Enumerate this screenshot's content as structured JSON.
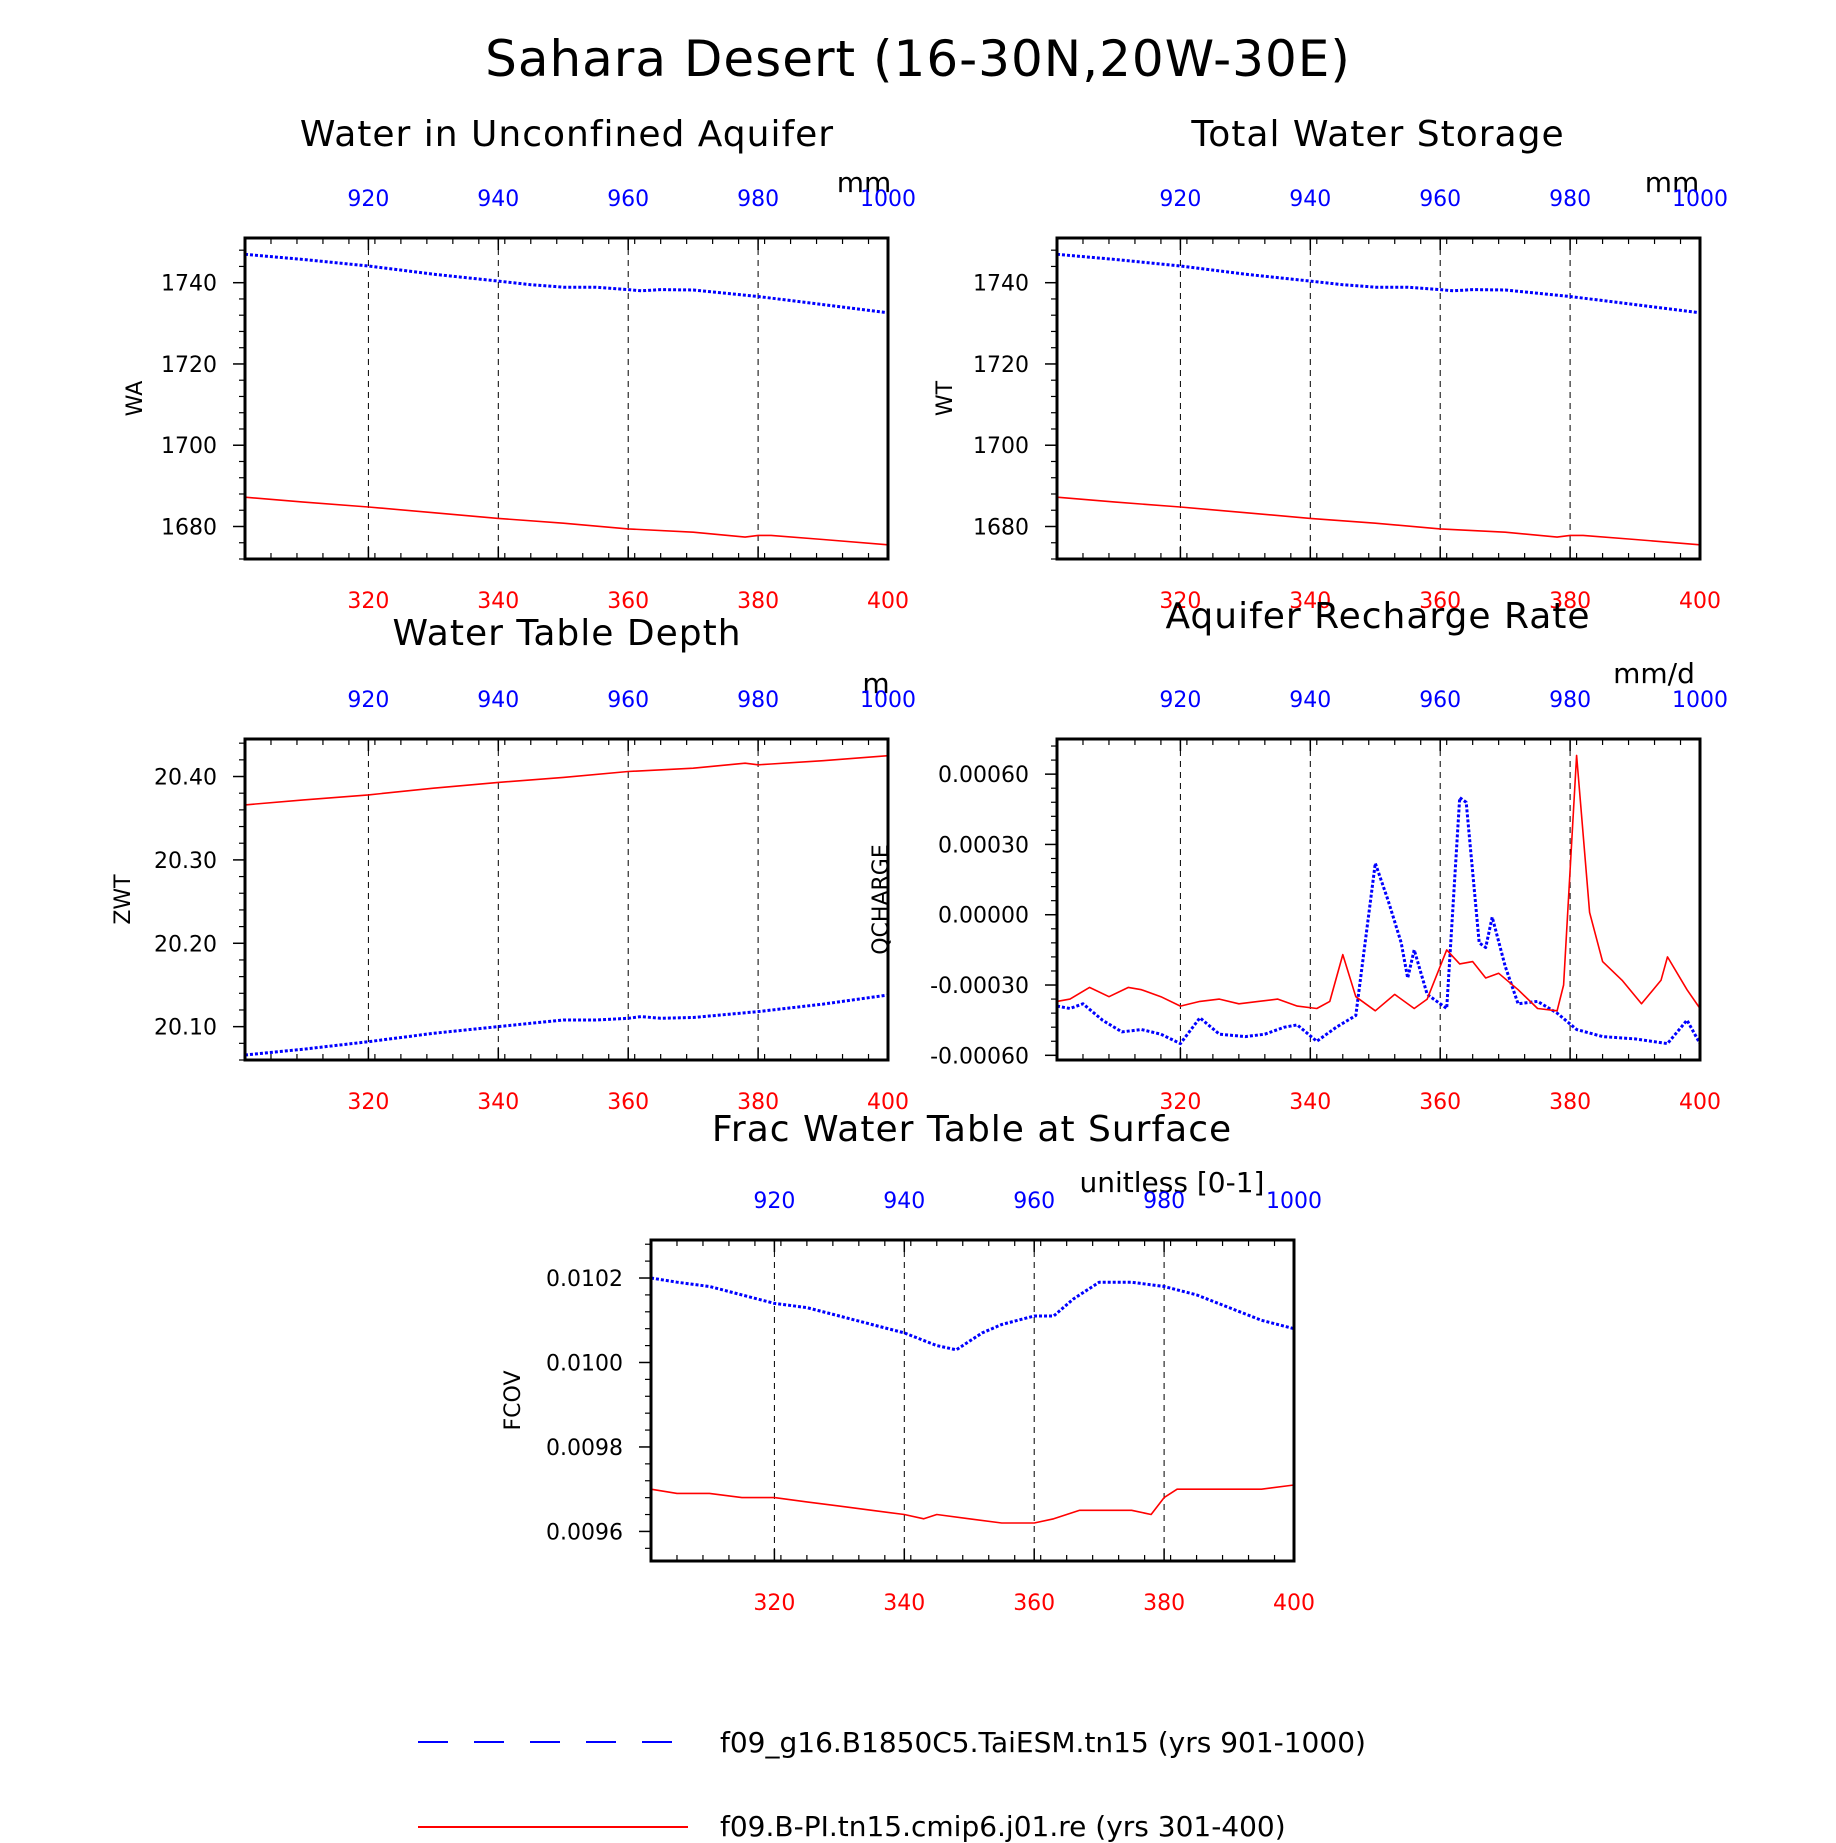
{
  "title": "Sahara Desert (16-30N,20W-30E)",
  "colors": {
    "series_blue": "#0000ff",
    "series_red": "#ff0000",
    "axes": "#000000"
  },
  "legend": [
    {
      "label": "f09_g16.B1850C5.TaiESM.tn15 (yrs 901-1000)",
      "color": "#0000ff",
      "style": "dashed"
    },
    {
      "label": "f09.B-PI.tn15.cmip6.j01.re (yrs 301-400)",
      "color": "#ff0000",
      "style": "solid"
    }
  ],
  "chart_data": [
    {
      "type": "line",
      "title": "Water in Unconfined Aquifer",
      "units": "mm",
      "ylabel": "WA",
      "ylim": [
        1672,
        1751
      ],
      "yticks": [
        1680,
        1700,
        1720,
        1740
      ],
      "ytick_labels": [
        "1680",
        "1700",
        "1720",
        "1740"
      ],
      "xlim_bottom": [
        301,
        400
      ],
      "xlim_top": [
        901,
        1000
      ],
      "xticks_bottom": [
        320,
        340,
        360,
        380,
        400
      ],
      "xticks_top": [
        920,
        940,
        960,
        980,
        1000
      ],
      "grid": "vertical dashed",
      "series": [
        {
          "name": "f09_g16.B1850C5.TaiESM.tn15 (yrs 901-1000)",
          "axis": "top",
          "style": "dotted",
          "color": "#0000ff",
          "x": [
            901,
            910,
            920,
            930,
            940,
            945,
            950,
            955,
            960,
            962,
            965,
            970,
            980,
            990,
            1000
          ],
          "y": [
            1747,
            1745.7,
            1744.1,
            1742.1,
            1740.4,
            1739.5,
            1738.9,
            1738.9,
            1738.3,
            1738.0,
            1738.3,
            1738.2,
            1736.6,
            1734.6,
            1732.6
          ]
        },
        {
          "name": "f09.B-PI.tn15.cmip6.j01.re (yrs 301-400)",
          "axis": "bottom",
          "style": "solid",
          "color": "#ff0000",
          "x": [
            301,
            310,
            320,
            330,
            340,
            350,
            360,
            370,
            378,
            380,
            382,
            390,
            400
          ],
          "y": [
            1687.2,
            1686.0,
            1684.8,
            1683.4,
            1682.0,
            1680.8,
            1679.4,
            1678.6,
            1677.4,
            1677.8,
            1677.8,
            1676.8,
            1675.5
          ]
        }
      ]
    },
    {
      "type": "line",
      "title": "Total Water Storage",
      "units": "mm",
      "ylabel": "WT",
      "ylim": [
        1672,
        1751
      ],
      "yticks": [
        1680,
        1700,
        1720,
        1740
      ],
      "ytick_labels": [
        "1680",
        "1700",
        "1720",
        "1740"
      ],
      "xlim_bottom": [
        301,
        400
      ],
      "xlim_top": [
        901,
        1000
      ],
      "xticks_bottom": [
        320,
        340,
        360,
        380,
        400
      ],
      "xticks_top": [
        920,
        940,
        960,
        980,
        1000
      ],
      "grid": "vertical dashed",
      "series": [
        {
          "name": "f09_g16.B1850C5.TaiESM.tn15 (yrs 901-1000)",
          "axis": "top",
          "style": "dotted",
          "color": "#0000ff",
          "x": [
            901,
            910,
            920,
            930,
            940,
            945,
            950,
            955,
            960,
            962,
            965,
            970,
            980,
            990,
            1000
          ],
          "y": [
            1747,
            1745.7,
            1744.1,
            1742.1,
            1740.4,
            1739.5,
            1738.9,
            1738.9,
            1738.3,
            1738.0,
            1738.3,
            1738.2,
            1736.6,
            1734.6,
            1732.6
          ]
        },
        {
          "name": "f09.B-PI.tn15.cmip6.j01.re (yrs 301-400)",
          "axis": "bottom",
          "style": "solid",
          "color": "#ff0000",
          "x": [
            301,
            310,
            320,
            330,
            340,
            350,
            360,
            370,
            378,
            380,
            382,
            390,
            400
          ],
          "y": [
            1687.2,
            1686.0,
            1684.8,
            1683.4,
            1682.0,
            1680.8,
            1679.4,
            1678.6,
            1677.4,
            1677.8,
            1677.8,
            1676.8,
            1675.5
          ]
        }
      ]
    },
    {
      "type": "line",
      "title": "Water Table Depth",
      "units": "m",
      "ylabel": "ZWT",
      "ylim": [
        20.06,
        20.445
      ],
      "yticks": [
        20.1,
        20.2,
        20.3,
        20.4
      ],
      "ytick_labels": [
        "20.10",
        "20.20",
        "20.30",
        "20.40"
      ],
      "xlim_bottom": [
        301,
        400
      ],
      "xlim_top": [
        901,
        1000
      ],
      "xticks_bottom": [
        320,
        340,
        360,
        380,
        400
      ],
      "xticks_top": [
        920,
        940,
        960,
        980,
        1000
      ],
      "grid": "vertical dashed",
      "series": [
        {
          "name": "f09_g16.B1850C5.TaiESM.tn15 (yrs 901-1000)",
          "axis": "top",
          "style": "dotted",
          "color": "#0000ff",
          "x": [
            901,
            910,
            920,
            930,
            940,
            945,
            950,
            955,
            960,
            962,
            965,
            970,
            980,
            990,
            1000
          ],
          "y": [
            20.066,
            20.073,
            20.082,
            20.092,
            20.1,
            20.104,
            20.108,
            20.108,
            20.11,
            20.112,
            20.11,
            20.111,
            20.118,
            20.127,
            20.138
          ]
        },
        {
          "name": "f09.B-PI.tn15.cmip6.j01.re (yrs 301-400)",
          "axis": "bottom",
          "style": "solid",
          "color": "#ff0000",
          "x": [
            301,
            310,
            320,
            330,
            340,
            350,
            360,
            370,
            378,
            380,
            382,
            390,
            400
          ],
          "y": [
            20.366,
            20.372,
            20.378,
            20.386,
            20.393,
            20.399,
            20.406,
            20.41,
            20.416,
            20.414,
            20.415,
            20.419,
            20.425
          ]
        }
      ]
    },
    {
      "type": "line",
      "title": "Aquifer Recharge Rate",
      "units": "mm/d",
      "ylabel": "QCHARGE",
      "ylim": [
        -0.00062,
        0.00075
      ],
      "yticks": [
        -0.0006,
        -0.0003,
        0.0,
        0.0003,
        0.0006
      ],
      "ytick_labels": [
        "-0.00060",
        "-0.00030",
        "0.00000",
        "0.00030",
        "0.00060"
      ],
      "xlim_bottom": [
        301,
        400
      ],
      "xlim_top": [
        901,
        1000
      ],
      "xticks_bottom": [
        320,
        340,
        360,
        380,
        400
      ],
      "xticks_top": [
        920,
        940,
        960,
        980,
        1000
      ],
      "grid": "vertical dashed",
      "series": [
        {
          "name": "f09_g16.B1850C5.TaiESM.tn15 (yrs 901-1000)",
          "axis": "top",
          "style": "dotted",
          "color": "#0000ff",
          "x": [
            901,
            903,
            905,
            908,
            911,
            914,
            917,
            920,
            923,
            926,
            930,
            933,
            936,
            938,
            941,
            944,
            947,
            950,
            952,
            954,
            955,
            956,
            958,
            959,
            961,
            963,
            964,
            966,
            967,
            968,
            970,
            972,
            975,
            978,
            981,
            985,
            990,
            995,
            998,
            1000
          ],
          "y": [
            -0.00039,
            -0.0004,
            -0.00038,
            -0.00045,
            -0.0005,
            -0.00049,
            -0.00051,
            -0.00055,
            -0.00044,
            -0.00051,
            -0.00052,
            -0.00051,
            -0.00048,
            -0.00047,
            -0.00054,
            -0.00048,
            -0.00043,
            0.00022,
            6e-05,
            -0.00012,
            -0.00027,
            -0.00015,
            -0.00034,
            -0.00036,
            -0.0004,
            0.0005,
            0.00048,
            -0.00012,
            -0.00014,
            -1e-05,
            -0.00022,
            -0.00038,
            -0.00037,
            -0.00042,
            -0.00049,
            -0.00052,
            -0.00053,
            -0.00055,
            -0.00045,
            -0.00055
          ]
        },
        {
          "name": "f09.B-PI.tn15.cmip6.j01.re (yrs 301-400)",
          "axis": "bottom",
          "style": "solid",
          "color": "#ff0000",
          "x": [
            301,
            303,
            306,
            309,
            312,
            314,
            317,
            320,
            323,
            326,
            329,
            332,
            335,
            338,
            341,
            343,
            345,
            347,
            350,
            353,
            356,
            358,
            361,
            363,
            365,
            367,
            369,
            372,
            375,
            378,
            379,
            381,
            383,
            385,
            388,
            391,
            394,
            395,
            398,
            400
          ],
          "y": [
            -0.00037,
            -0.00036,
            -0.00031,
            -0.00035,
            -0.00031,
            -0.00032,
            -0.00035,
            -0.00039,
            -0.00037,
            -0.00036,
            -0.00038,
            -0.00037,
            -0.00036,
            -0.00039,
            -0.0004,
            -0.00037,
            -0.00017,
            -0.00035,
            -0.00041,
            -0.00034,
            -0.0004,
            -0.00036,
            -0.00015,
            -0.00021,
            -0.0002,
            -0.00027,
            -0.00025,
            -0.00032,
            -0.0004,
            -0.00041,
            -0.0003,
            0.00068,
            1e-05,
            -0.0002,
            -0.00028,
            -0.00038,
            -0.00028,
            -0.00018,
            -0.00032,
            -0.0004
          ]
        }
      ]
    },
    {
      "type": "line",
      "title": "Frac Water Table at Surface",
      "units": "unitless [0-1]",
      "ylabel": "FCOV",
      "ylim": [
        0.00953,
        0.01029
      ],
      "yticks": [
        0.0096,
        0.0098,
        0.01,
        0.0102
      ],
      "ytick_labels": [
        "0.0096",
        "0.0098",
        "0.0100",
        "0.0102"
      ],
      "xlim_bottom": [
        301,
        400
      ],
      "xlim_top": [
        901,
        1000
      ],
      "xticks_bottom": [
        320,
        340,
        360,
        380,
        400
      ],
      "xticks_top": [
        920,
        940,
        960,
        980,
        1000
      ],
      "grid": "vertical dashed",
      "series": [
        {
          "name": "f09_g16.B1850C5.TaiESM.tn15 (yrs 901-1000)",
          "axis": "top",
          "style": "dotted",
          "color": "#0000ff",
          "x": [
            901,
            905,
            910,
            915,
            920,
            925,
            930,
            935,
            940,
            945,
            948,
            952,
            955,
            960,
            963,
            966,
            970,
            975,
            980,
            985,
            990,
            995,
            1000
          ],
          "y": [
            0.0102,
            0.01019,
            0.01018,
            0.01016,
            0.01014,
            0.01013,
            0.01011,
            0.01009,
            0.01007,
            0.01004,
            0.01003,
            0.01007,
            0.01009,
            0.01011,
            0.01011,
            0.01015,
            0.01019,
            0.01019,
            0.01018,
            0.01016,
            0.01013,
            0.0101,
            0.01008
          ]
        },
        {
          "name": "f09.B-PI.tn15.cmip6.j01.re (yrs 301-400)",
          "axis": "bottom",
          "style": "solid",
          "color": "#ff0000",
          "x": [
            301,
            305,
            310,
            315,
            320,
            325,
            330,
            335,
            340,
            343,
            345,
            350,
            355,
            360,
            363,
            367,
            370,
            375,
            378,
            380,
            382,
            385,
            390,
            395,
            400
          ],
          "y": [
            0.0097,
            0.00969,
            0.00969,
            0.00968,
            0.00968,
            0.00967,
            0.00966,
            0.00965,
            0.00964,
            0.00963,
            0.00964,
            0.00963,
            0.00962,
            0.00962,
            0.00963,
            0.00965,
            0.00965,
            0.00965,
            0.00964,
            0.00968,
            0.0097,
            0.0097,
            0.0097,
            0.0097,
            0.00971
          ]
        }
      ]
    }
  ]
}
